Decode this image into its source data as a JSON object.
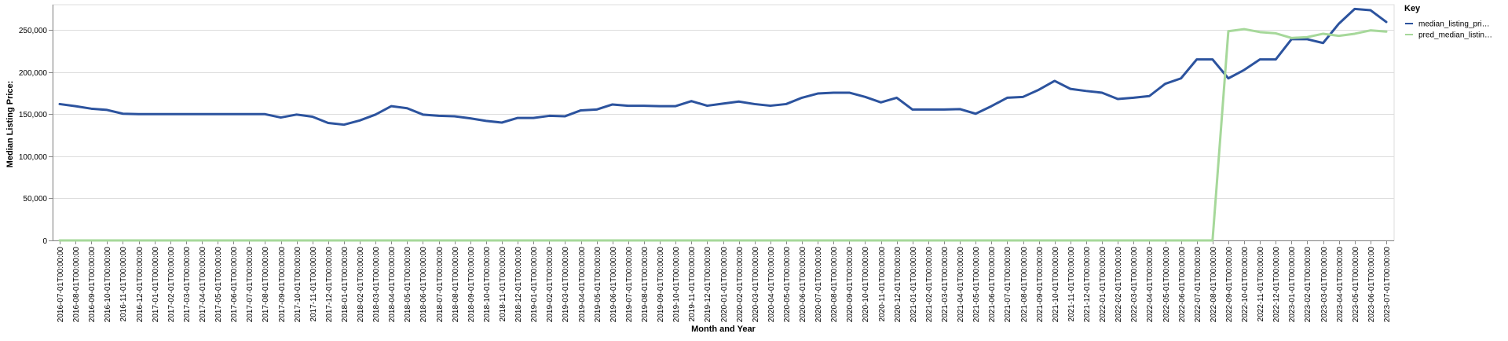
{
  "chart_data": {
    "type": "line",
    "title": "",
    "xlabel": "Month and Year",
    "ylabel": "Median Listing Price:",
    "ylim": [
      0,
      280000
    ],
    "yticks": [
      0,
      50000,
      100000,
      150000,
      200000,
      250000
    ],
    "ytick_labels": [
      "0",
      "50,000",
      "100,000",
      "150,000",
      "200,000",
      "250,000"
    ],
    "grid": true,
    "legend": {
      "title": "Key",
      "position": "right"
    },
    "x": [
      "2016-07-01T00:00:00",
      "2016-08-01T00:00:00",
      "2016-09-01T00:00:00",
      "2016-10-01T00:00:00",
      "2016-11-01T00:00:00",
      "2016-12-01T00:00:00",
      "2017-01-01T00:00:00",
      "2017-02-01T00:00:00",
      "2017-03-01T00:00:00",
      "2017-04-01T00:00:00",
      "2017-05-01T00:00:00",
      "2017-06-01T00:00:00",
      "2017-07-01T00:00:00",
      "2017-08-01T00:00:00",
      "2017-09-01T00:00:00",
      "2017-10-01T00:00:00",
      "2017-11-01T00:00:00",
      "2017-12-01T00:00:00",
      "2018-01-01T00:00:00",
      "2018-02-01T00:00:00",
      "2018-03-01T00:00:00",
      "2018-04-01T00:00:00",
      "2018-05-01T00:00:00",
      "2018-06-01T00:00:00",
      "2018-07-01T00:00:00",
      "2018-08-01T00:00:00",
      "2018-09-01T00:00:00",
      "2018-10-01T00:00:00",
      "2018-11-01T00:00:00",
      "2018-12-01T00:00:00",
      "2019-01-01T00:00:00",
      "2019-02-01T00:00:00",
      "2019-03-01T00:00:00",
      "2019-04-01T00:00:00",
      "2019-05-01T00:00:00",
      "2019-06-01T00:00:00",
      "2019-07-01T00:00:00",
      "2019-08-01T00:00:00",
      "2019-09-01T00:00:00",
      "2019-10-01T00:00:00",
      "2019-11-01T00:00:00",
      "2019-12-01T00:00:00",
      "2020-01-01T00:00:00",
      "2020-02-01T00:00:00",
      "2020-03-01T00:00:00",
      "2020-04-01T00:00:00",
      "2020-05-01T00:00:00",
      "2020-06-01T00:00:00",
      "2020-07-01T00:00:00",
      "2020-08-01T00:00:00",
      "2020-09-01T00:00:00",
      "2020-10-01T00:00:00",
      "2020-11-01T00:00:00",
      "2020-12-01T00:00:00",
      "2021-01-01T00:00:00",
      "2021-02-01T00:00:00",
      "2021-03-01T00:00:00",
      "2021-04-01T00:00:00",
      "2021-05-01T00:00:00",
      "2021-06-01T00:00:00",
      "2021-07-01T00:00:00",
      "2021-08-01T00:00:00",
      "2021-09-01T00:00:00",
      "2021-10-01T00:00:00",
      "2021-11-01T00:00:00",
      "2021-12-01T00:00:00",
      "2022-01-01T00:00:00",
      "2022-02-01T00:00:00",
      "2022-03-01T00:00:00",
      "2022-04-01T00:00:00",
      "2022-05-01T00:00:00",
      "2022-06-01T00:00:00",
      "2022-07-01T00:00:00",
      "2022-08-01T00:00:00",
      "2022-09-01T00:00:00",
      "2022-10-01T00:00:00",
      "2022-11-01T00:00:00",
      "2022-12-01T00:00:00",
      "2023-01-01T00:00:00",
      "2023-02-01T00:00:00",
      "2023-03-01T00:00:00",
      "2023-04-01T00:00:00",
      "2023-05-01T00:00:00",
      "2023-06-01T00:00:00",
      "2023-07-01T00:00:00"
    ],
    "series": [
      {
        "name": "median_listing_pri…",
        "color": "#2c539e",
        "values": [
          162000,
          159500,
          156500,
          155000,
          150500,
          150000,
          150000,
          150000,
          150000,
          150000,
          150000,
          150000,
          150000,
          150000,
          146000,
          149500,
          147000,
          139500,
          137500,
          142500,
          149500,
          159500,
          157000,
          149500,
          148000,
          147500,
          145000,
          142000,
          140000,
          145500,
          145500,
          148000,
          147500,
          154500,
          155500,
          161500,
          160000,
          160000,
          159500,
          159500,
          165500,
          160000,
          162500,
          165000,
          162000,
          160000,
          162000,
          169500,
          174500,
          175500,
          175500,
          170500,
          164000,
          169500,
          155500,
          155500,
          155500,
          156000,
          150500,
          159500,
          169500,
          170500,
          179000,
          189500,
          180000,
          177500,
          175500,
          168000,
          169500,
          171500,
          186000,
          192500,
          215000,
          215000,
          192500,
          202500,
          215000,
          215000,
          239000,
          239000,
          234500,
          257500,
          275000,
          273500,
          259500
        ]
      },
      {
        "name": "pred_median_listin…",
        "color": "#a6d89a",
        "values": [
          0,
          0,
          0,
          0,
          0,
          0,
          0,
          0,
          0,
          0,
          0,
          0,
          0,
          0,
          0,
          0,
          0,
          0,
          0,
          0,
          0,
          0,
          0,
          0,
          0,
          0,
          0,
          0,
          0,
          0,
          0,
          0,
          0,
          0,
          0,
          0,
          0,
          0,
          0,
          0,
          0,
          0,
          0,
          0,
          0,
          0,
          0,
          0,
          0,
          0,
          0,
          0,
          0,
          0,
          0,
          0,
          0,
          0,
          0,
          0,
          0,
          0,
          0,
          0,
          0,
          0,
          0,
          0,
          0,
          0,
          0,
          0,
          0,
          0,
          248500,
          251000,
          247500,
          246000,
          240500,
          241500,
          245500,
          243000,
          245500,
          249500,
          248000
        ]
      }
    ]
  }
}
